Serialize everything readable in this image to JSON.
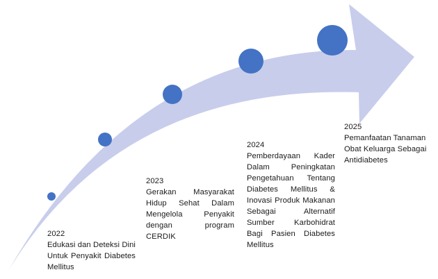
{
  "colors": {
    "arrow_fill": "#c8cdec",
    "dot_fill": "#4472c4",
    "text": "#1a1a1a"
  },
  "milestones": [
    {
      "year": "2022",
      "description": "Edukasi dan Deteksi Dini Untuk Penyakit Diabetes Mellitus"
    },
    {
      "year": "2023",
      "description": "Gerakan Masyarakat Hidup Sehat Dalam Mengelola Penyakit dengan program CERDIK"
    },
    {
      "year": "2024",
      "description": "Pemberdayaan Kader Dalam Peningkatan Pengetahuan Tentang Diabetes Mellitus & Inovasi Produk Makanan Sebagai Alternatif Sumber Karbohidrat Bagi Pasien Diabetes Mellitus"
    },
    {
      "year": "2025",
      "description": "Pemanfaatan Tanaman Obat Keluarga Sebagai Antidiabetes"
    }
  ]
}
